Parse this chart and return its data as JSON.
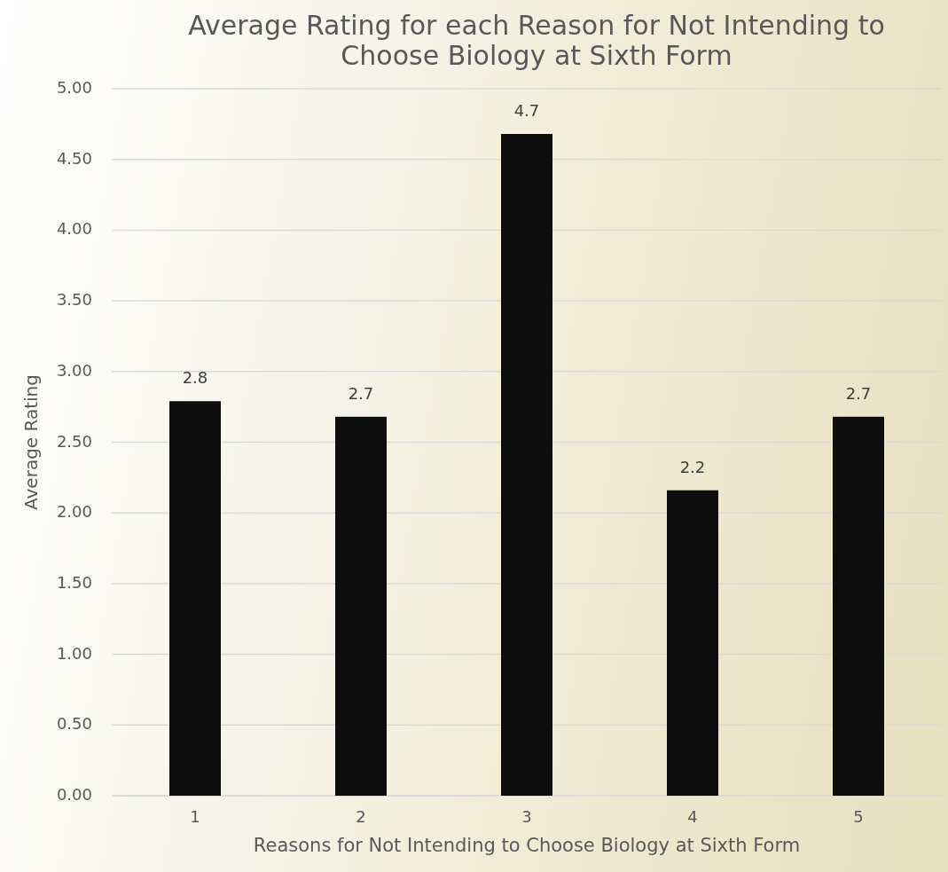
{
  "chart_data": {
    "type": "bar",
    "title": "Average Rating for each Reason for Not Intending to Choose Biology at Sixth Form",
    "xlabel": "Reasons for Not Intending to Choose Biology at Sixth Form",
    "ylabel": "Average Rating",
    "categories": [
      "1",
      "2",
      "3",
      "4",
      "5"
    ],
    "values": [
      2.79,
      2.68,
      4.68,
      2.16,
      2.68
    ],
    "value_labels": [
      "2.8",
      "2.7",
      "4.7",
      "2.2",
      "2.7"
    ],
    "color": "#0d0d0d",
    "ylim": [
      0,
      5
    ],
    "yticks": [
      {
        "value": 0,
        "label": "0.00"
      },
      {
        "value": 0.5,
        "label": "0.50"
      },
      {
        "value": 1,
        "label": "1.00"
      },
      {
        "value": 1.5,
        "label": "1.50"
      },
      {
        "value": 2,
        "label": "2.00"
      },
      {
        "value": 2.5,
        "label": "2.50"
      },
      {
        "value": 3,
        "label": "3.00"
      },
      {
        "value": 3.5,
        "label": "3.50"
      },
      {
        "value": 4,
        "label": "4.00"
      },
      {
        "value": 4.5,
        "label": "4.50"
      },
      {
        "value": 5,
        "label": "5.00"
      }
    ],
    "grid": "y"
  }
}
